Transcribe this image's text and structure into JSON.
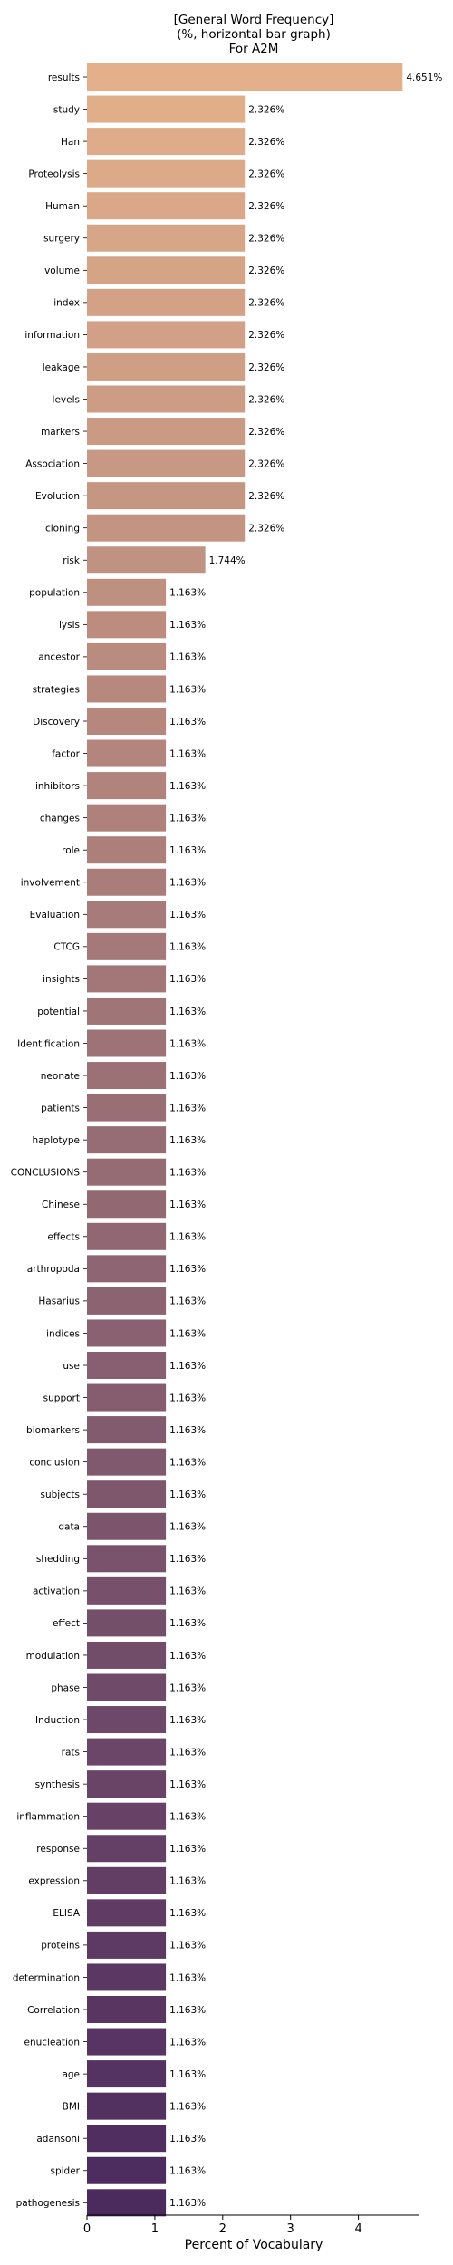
{
  "chart_data": {
    "type": "bar",
    "orientation": "horizontal",
    "title": [
      "[General Word Frequency]",
      "(%, horizontal bar graph)",
      "For A2M"
    ],
    "xlabel": "Percent of Vocabulary",
    "ylabel": "",
    "xlim": [
      0,
      4.9
    ],
    "xticks": [
      0,
      1,
      2,
      3,
      4
    ],
    "grid": false,
    "value_suffix": "%",
    "color_start": "#e3b08b",
    "color_end": "#4b2a5e",
    "categories": [
      "results",
      "study",
      "Han",
      "Proteolysis",
      "Human",
      "surgery",
      "volume",
      "index",
      "information",
      "leakage",
      "levels",
      "markers",
      "Association",
      "Evolution",
      "cloning",
      "risk",
      "population",
      "lysis",
      "ancestor",
      "strategies",
      "Discovery",
      "factor",
      "inhibitors",
      "changes",
      "role",
      "involvement",
      "Evaluation",
      "CTCG",
      "insights",
      "potential",
      "Identification",
      "neonate",
      "patients",
      "haplotype",
      "CONCLUSIONS",
      "Chinese",
      "effects",
      "arthropoda",
      "Hasarius",
      "indices",
      "use",
      "support",
      "biomarkers",
      "conclusion",
      "subjects",
      "data",
      "shedding",
      "activation",
      "effect",
      "modulation",
      "phase",
      "Induction",
      "rats",
      "synthesis",
      "inflammation",
      "response",
      "expression",
      "ELISA",
      "proteins",
      "determination",
      "Correlation",
      "enucleation",
      "age",
      "BMI",
      "adansoni",
      "spider",
      "pathogenesis"
    ],
    "values": [
      4.651,
      2.326,
      2.326,
      2.326,
      2.326,
      2.326,
      2.326,
      2.326,
      2.326,
      2.326,
      2.326,
      2.326,
      2.326,
      2.326,
      2.326,
      1.744,
      1.163,
      1.163,
      1.163,
      1.163,
      1.163,
      1.163,
      1.163,
      1.163,
      1.163,
      1.163,
      1.163,
      1.163,
      1.163,
      1.163,
      1.163,
      1.163,
      1.163,
      1.163,
      1.163,
      1.163,
      1.163,
      1.163,
      1.163,
      1.163,
      1.163,
      1.163,
      1.163,
      1.163,
      1.163,
      1.163,
      1.163,
      1.163,
      1.163,
      1.163,
      1.163,
      1.163,
      1.163,
      1.163,
      1.163,
      1.163,
      1.163,
      1.163,
      1.163,
      1.163,
      1.163,
      1.163,
      1.163,
      1.163,
      1.163,
      1.163,
      1.163
    ],
    "value_labels": [
      "4.651%",
      "2.326%",
      "2.326%",
      "2.326%",
      "2.326%",
      "2.326%",
      "2.326%",
      "2.326%",
      "2.326%",
      "2.326%",
      "2.326%",
      "2.326%",
      "2.326%",
      "2.326%",
      "2.326%",
      "1.744%",
      "1.163%",
      "1.163%",
      "1.163%",
      "1.163%",
      "1.163%",
      "1.163%",
      "1.163%",
      "1.163%",
      "1.163%",
      "1.163%",
      "1.163%",
      "1.163%",
      "1.163%",
      "1.163%",
      "1.163%",
      "1.163%",
      "1.163%",
      "1.163%",
      "1.163%",
      "1.163%",
      "1.163%",
      "1.163%",
      "1.163%",
      "1.163%",
      "1.163%",
      "1.163%",
      "1.163%",
      "1.163%",
      "1.163%",
      "1.163%",
      "1.163%",
      "1.163%",
      "1.163%",
      "1.163%",
      "1.163%",
      "1.163%",
      "1.163%",
      "1.163%",
      "1.163%",
      "1.163%",
      "1.163%",
      "1.163%",
      "1.163%",
      "1.163%",
      "1.163%",
      "1.163%",
      "1.163%",
      "1.163%",
      "1.163%",
      "1.163%",
      "1.163%"
    ]
  }
}
